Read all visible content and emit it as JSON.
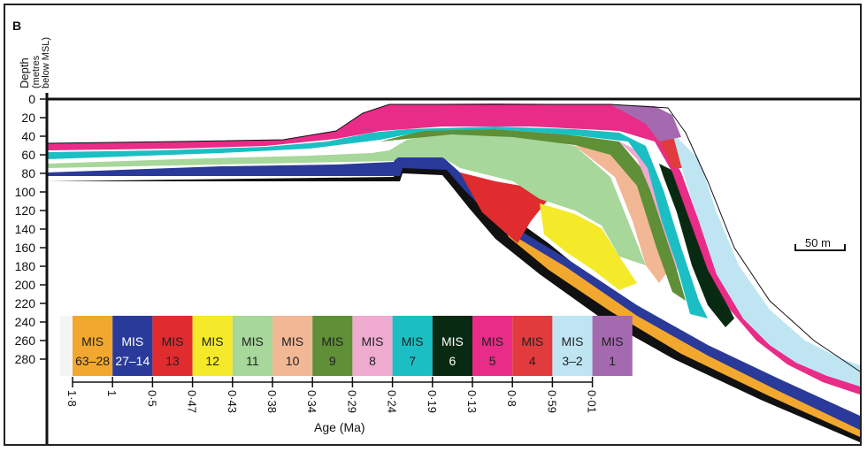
{
  "panel_label": "B",
  "y_axis": {
    "title": "Depth",
    "subtitle_line1": "(metres",
    "subtitle_line2": "below MSL)",
    "ticks": [
      "0",
      "20",
      "40",
      "60",
      "80",
      "100",
      "120",
      "140",
      "160",
      "180",
      "200",
      "220",
      "240",
      "260",
      "280"
    ]
  },
  "scale_bar": {
    "label": "50 m"
  },
  "legend": {
    "items": [
      {
        "line1": "MIS",
        "line2": "63–28",
        "color": "#f2a72e",
        "text_color": "#222222"
      },
      {
        "line1": "MIS",
        "line2": "27–14",
        "color": "#2a3a9a",
        "text_color": "#ffffff"
      },
      {
        "line1": "MIS",
        "line2": "13",
        "color": "#e02b2f",
        "text_color": "#222222"
      },
      {
        "line1": "MIS",
        "line2": "12",
        "color": "#f4ea2a",
        "text_color": "#222222"
      },
      {
        "line1": "MIS",
        "line2": "11",
        "color": "#a7d79a",
        "text_color": "#222222"
      },
      {
        "line1": "MIS",
        "line2": "10",
        "color": "#f2b795",
        "text_color": "#222222"
      },
      {
        "line1": "MIS",
        "line2": "9",
        "color": "#5f8f36",
        "text_color": "#222222"
      },
      {
        "line1": "MIS",
        "line2": "8",
        "color": "#efaad0",
        "text_color": "#222222"
      },
      {
        "line1": "MIS",
        "line2": "7",
        "color": "#1bbfc3",
        "text_color": "#222222"
      },
      {
        "line1": "MIS",
        "line2": "6",
        "color": "#082a12",
        "text_color": "#ffffff"
      },
      {
        "line1": "MIS",
        "line2": "5",
        "color": "#e82c87",
        "text_color": "#222222"
      },
      {
        "line1": "MIS",
        "line2": "4",
        "color": "#e23b3e",
        "text_color": "#222222"
      },
      {
        "line1": "MIS",
        "line2": "3–2",
        "color": "#bfe5f3",
        "text_color": "#222222"
      },
      {
        "line1": "MIS",
        "line2": "1",
        "color": "#a569b0",
        "text_color": "#222222"
      }
    ]
  },
  "age_axis": {
    "title": "Age (Ma)",
    "ticks": [
      "1·8",
      "1",
      "0·5",
      "0·47",
      "0·43",
      "0·38",
      "0·34",
      "0·29",
      "0·24",
      "0·19",
      "0·13",
      "0·8",
      "0·59",
      "0·01"
    ]
  }
}
